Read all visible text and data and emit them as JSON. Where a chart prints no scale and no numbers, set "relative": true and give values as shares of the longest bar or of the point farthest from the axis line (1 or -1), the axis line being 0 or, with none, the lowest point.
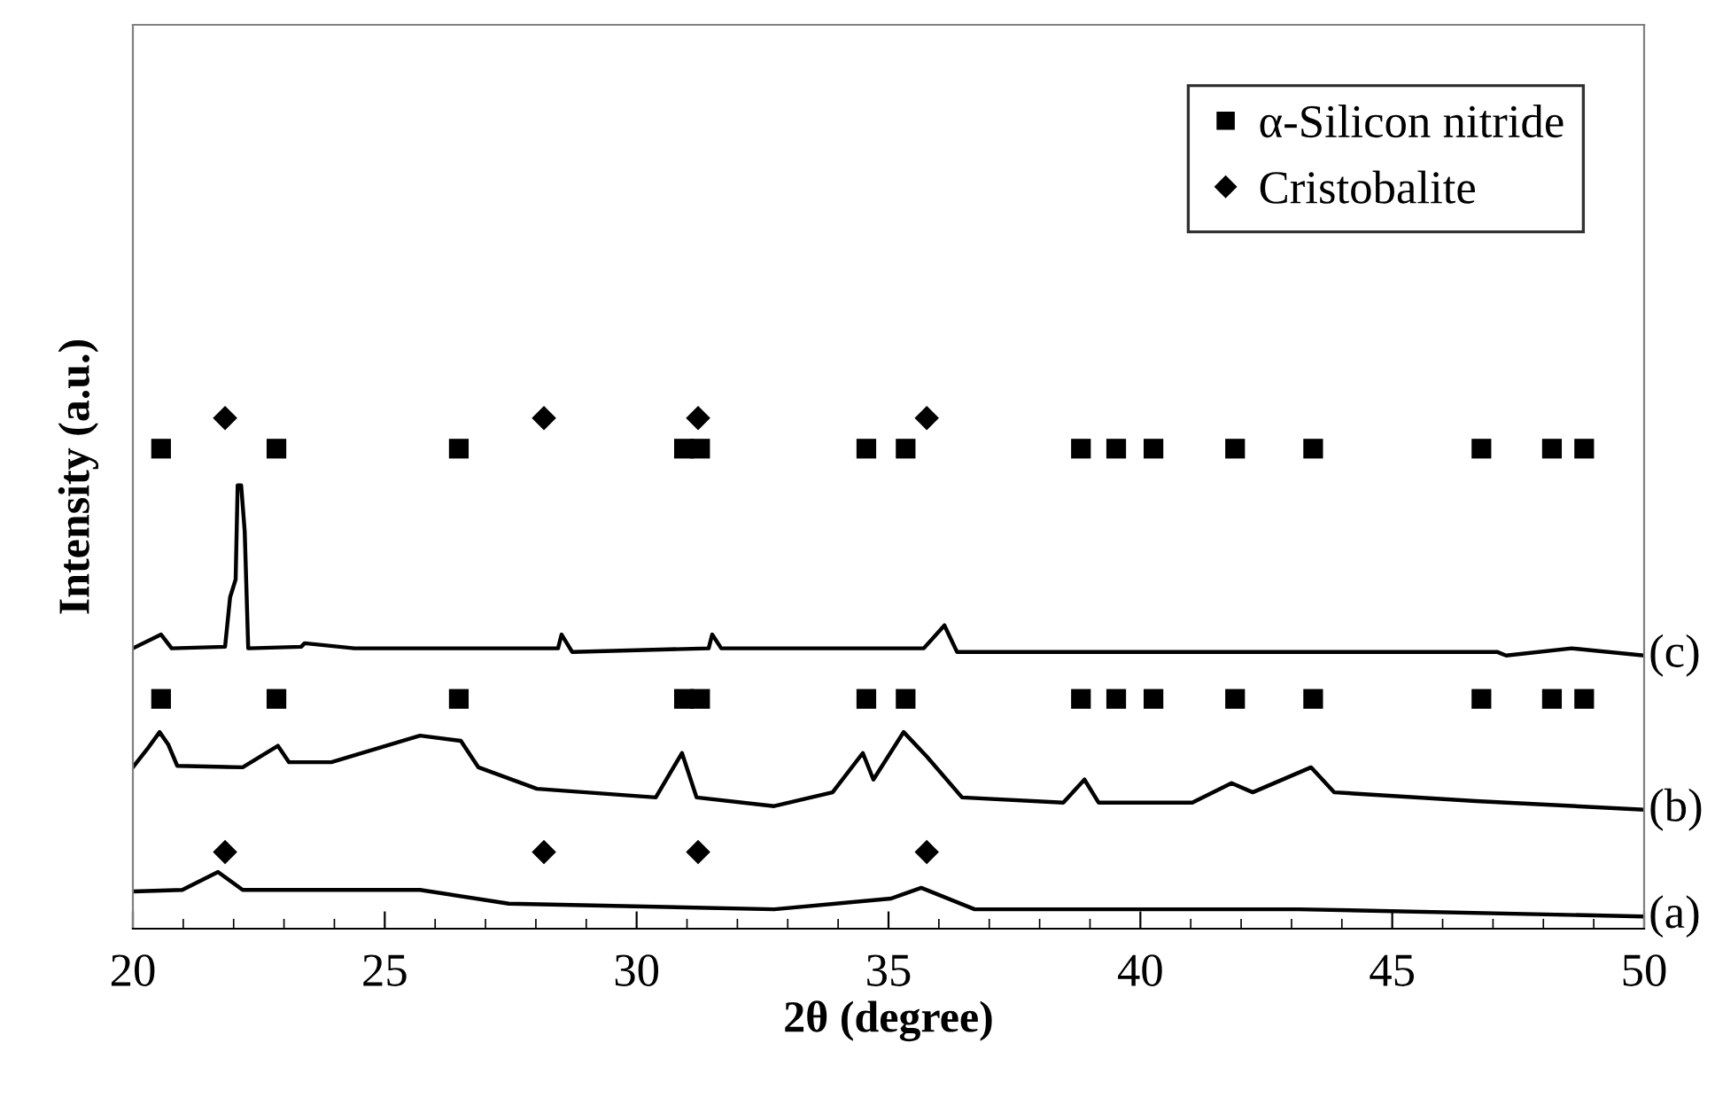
{
  "chart_data": {
    "type": "line",
    "relative": true,
    "xlabel": "2θ (degree)",
    "ylabel": "Intensity (a.u.)",
    "xlim": [
      20,
      50
    ],
    "xticks": [
      20,
      25,
      30,
      35,
      40,
      45,
      50
    ],
    "tick_labels": "x",
    "grid": false,
    "legend": "top right",
    "marker": "none",
    "line_style": "solid",
    "series": [
      {
        "name": "α-Silicon nitride",
        "type": "scatter",
        "marker": "square",
        "color": "#000000",
        "x": [
          20.56,
          22.85,
          26.47,
          30.94,
          31.26,
          34.56,
          35.34,
          38.82,
          39.52,
          40.26,
          41.88,
          43.43,
          46.77,
          48.17,
          48.81,
          20.56,
          22.85,
          26.47,
          30.94,
          31.26,
          34.56,
          35.34,
          38.82,
          39.52,
          40.26,
          41.88,
          43.43,
          46.77,
          48.17,
          48.81
        ],
        "values": [
          0.94,
          0.94,
          0.94,
          0.94,
          0.94,
          0.94,
          0.94,
          0.94,
          0.94,
          0.94,
          0.94,
          0.94,
          0.94,
          0.94,
          0.94,
          0.45,
          0.45,
          0.45,
          0.45,
          0.45,
          0.45,
          0.45,
          0.45,
          0.45,
          0.45,
          0.45,
          0.45,
          0.45,
          0.45,
          0.45
        ]
      },
      {
        "name": "Cristobalite",
        "type": "scatter",
        "marker": "diamond",
        "color": "#000000",
        "x": [
          21.83,
          28.16,
          31.22,
          35.76,
          21.83,
          28.16,
          31.22,
          35.76
        ],
        "values": [
          1.0,
          1.0,
          1.0,
          1.0,
          0.15,
          0.15,
          0.15,
          0.15
        ]
      },
      {
        "name": "(c)",
        "color": "#000000",
        "x": [
          20.0,
          20.56,
          20.77,
          21.83,
          21.93,
          22.04,
          22.08,
          22.15,
          22.22,
          22.29,
          23.34,
          23.41,
          24.4,
          28.44,
          28.51,
          28.72,
          31.43,
          31.5,
          31.68,
          35.7,
          36.11,
          36.36,
          41.98,
          47.08,
          47.26,
          48.56,
          50.0
        ],
        "values": [
          0.549,
          0.576,
          0.549,
          0.552,
          0.649,
          0.684,
          0.868,
          0.868,
          0.778,
          0.549,
          0.552,
          0.559,
          0.549,
          0.549,
          0.576,
          0.542,
          0.549,
          0.576,
          0.549,
          0.549,
          0.594,
          0.542,
          0.542,
          0.542,
          0.535,
          0.549,
          0.535
        ]
      },
      {
        "name": "(b)",
        "color": "#000000",
        "x": [
          20.0,
          20.28,
          20.53,
          20.7,
          20.88,
          22.18,
          22.88,
          23.1,
          23.94,
          25.7,
          26.51,
          26.86,
          28.02,
          30.38,
          30.9,
          31.19,
          32.73,
          33.89,
          34.49,
          34.7,
          35.3,
          35.76,
          36.46,
          38.47,
          38.89,
          39.17,
          41.03,
          41.81,
          42.23,
          43.39,
          43.85,
          46.66,
          50.0
        ],
        "values": [
          0.316,
          0.351,
          0.385,
          0.361,
          0.319,
          0.316,
          0.358,
          0.326,
          0.326,
          0.378,
          0.368,
          0.316,
          0.274,
          0.257,
          0.344,
          0.257,
          0.24,
          0.267,
          0.344,
          0.292,
          0.385,
          0.337,
          0.257,
          0.247,
          0.292,
          0.247,
          0.247,
          0.285,
          0.267,
          0.316,
          0.267,
          0.25,
          0.233
        ]
      },
      {
        "name": "(a)",
        "color": "#000000",
        "x": [
          20.0,
          20.98,
          21.69,
          22.18,
          25.7,
          27.46,
          32.73,
          35.05,
          35.65,
          36.71,
          43.14,
          50.0
        ],
        "values": [
          0.073,
          0.076,
          0.111,
          0.076,
          0.076,
          0.049,
          0.038,
          0.059,
          0.08,
          0.038,
          0.038,
          0.024
        ]
      }
    ]
  }
}
